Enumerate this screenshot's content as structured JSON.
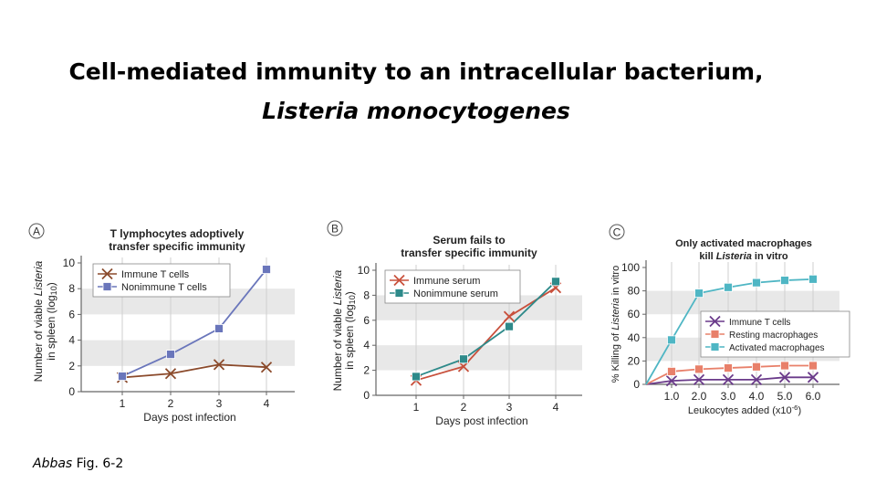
{
  "slide": {
    "title_line1": "Cell-mediated immunity to an intracellular bacterium,",
    "title_line2": "Listeria monocytogenes",
    "caption_author": "Abbas",
    "caption_ref": " Fig. 6-2"
  },
  "chart_data": [
    {
      "type": "line",
      "panel_letter": "A",
      "title_line1": "T lymphocytes adoptively",
      "title_line2": "transfer specific immunity",
      "ylabel_line1": "Number of viable Listeria",
      "ylabel_line2": "in spleen (log10)",
      "xlabel": "Days  post infection",
      "ylim": [
        0,
        10
      ],
      "yticks": [
        "0",
        "2",
        "4",
        "6",
        "8",
        "10"
      ],
      "x": [
        "1",
        "2",
        "3",
        "4"
      ],
      "series": [
        {
          "name": "Immune T cells",
          "marker": "x",
          "color": "#8b4a2b",
          "values": [
            1.1,
            1.4,
            2.1,
            1.9
          ]
        },
        {
          "name": "Nonimmune T cells",
          "marker": "square",
          "color": "#6a76bb",
          "values": [
            1.2,
            2.9,
            4.9,
            9.5
          ]
        }
      ],
      "shaded_bands": [
        [
          2,
          4
        ],
        [
          6,
          8
        ]
      ]
    },
    {
      "type": "line",
      "panel_letter": "B",
      "title_line1": "Serum fails to",
      "title_line2": "transfer specific immunity",
      "ylabel_line1": "Number of viable Listeria",
      "ylabel_line2": "in spleen (log10)",
      "xlabel": "Days  post infection",
      "ylim": [
        0,
        10
      ],
      "yticks": [
        "0",
        "2",
        "4",
        "6",
        "8",
        "10"
      ],
      "x": [
        "1",
        "2",
        "3",
        "4"
      ],
      "series": [
        {
          "name": "Immune serum",
          "marker": "x",
          "color": "#c8503c",
          "values": [
            1.2,
            2.3,
            6.3,
            8.6
          ]
        },
        {
          "name": "Nonimmune serum",
          "marker": "square",
          "color": "#2e8a8a",
          "values": [
            1.5,
            2.9,
            5.5,
            9.1
          ]
        }
      ],
      "shaded_bands": [
        [
          2,
          4
        ],
        [
          6,
          8
        ]
      ]
    },
    {
      "type": "line",
      "panel_letter": "C",
      "title_line1": "Only activated macrophages",
      "title_line2": "kill Listeria in vitro",
      "ylabel": "% Killing of Listeria  in vitro",
      "xlabel": "Leukocytes added (x10-6)",
      "ylim": [
        0,
        100
      ],
      "yticks": [
        "0",
        "20",
        "40",
        "60",
        "80",
        "100"
      ],
      "x": [
        "0",
        "1.0",
        "2.0",
        "3.0",
        "4.0",
        "5.0",
        "6.0"
      ],
      "series": [
        {
          "name": "Immune T cells",
          "marker": "x",
          "color": "#6a3a8a",
          "values": [
            0,
            3,
            4,
            4,
            4,
            6,
            6
          ]
        },
        {
          "name": "Resting macrophages",
          "marker": "square",
          "color": "#e8806a",
          "values": [
            0,
            11,
            13,
            14,
            15,
            16,
            16
          ]
        },
        {
          "name": "Activated macrophages",
          "marker": "square",
          "color": "#4fb6c4",
          "values": [
            0,
            38,
            78,
            83,
            87,
            89,
            90
          ]
        }
      ],
      "shaded_bands": [
        [
          20,
          40
        ],
        [
          60,
          80
        ]
      ]
    }
  ]
}
